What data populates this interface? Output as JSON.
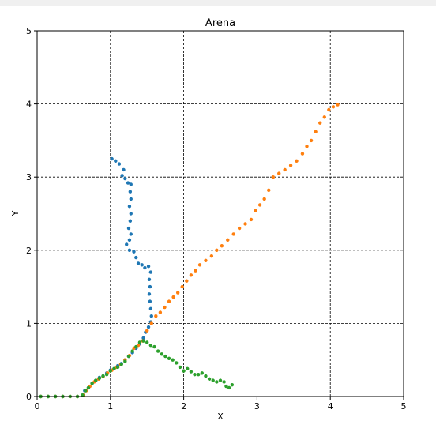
{
  "chart_data": {
    "type": "scatter",
    "title": "Arena",
    "xlabel": "X",
    "ylabel": "Y",
    "xlim": [
      0,
      5
    ],
    "ylim": [
      0,
      5
    ],
    "xticks": [
      0,
      1,
      2,
      3,
      4,
      5
    ],
    "yticks": [
      0,
      1,
      2,
      3,
      4,
      5
    ],
    "grid": true,
    "grid_style": "dashed",
    "legend": "none",
    "series": [
      {
        "color": "#1f77b4",
        "points": [
          [
            0.05,
            0.0
          ],
          [
            0.15,
            0.0
          ],
          [
            0.25,
            0.0
          ],
          [
            0.35,
            0.0
          ],
          [
            0.45,
            0.0
          ],
          [
            0.55,
            0.0
          ],
          [
            0.62,
            0.02
          ],
          [
            0.65,
            0.08
          ],
          [
            0.7,
            0.12
          ],
          [
            0.75,
            0.18
          ],
          [
            0.8,
            0.22
          ],
          [
            0.85,
            0.26
          ],
          [
            0.9,
            0.28
          ],
          [
            0.95,
            0.32
          ],
          [
            1.0,
            0.36
          ],
          [
            1.05,
            0.38
          ],
          [
            1.1,
            0.42
          ],
          [
            1.15,
            0.45
          ],
          [
            1.2,
            0.5
          ],
          [
            1.25,
            0.55
          ],
          [
            1.3,
            0.6
          ],
          [
            1.35,
            0.66
          ],
          [
            1.4,
            0.72
          ],
          [
            1.45,
            0.8
          ],
          [
            1.48,
            0.88
          ],
          [
            1.52,
            0.95
          ],
          [
            1.55,
            1.02
          ],
          [
            1.56,
            1.1
          ],
          [
            1.55,
            1.2
          ],
          [
            1.54,
            1.3
          ],
          [
            1.53,
            1.4
          ],
          [
            1.54,
            1.5
          ],
          [
            1.53,
            1.6
          ],
          [
            1.55,
            1.7
          ],
          [
            1.52,
            1.78
          ],
          [
            1.47,
            1.76
          ],
          [
            1.43,
            1.8
          ],
          [
            1.38,
            1.82
          ],
          [
            1.35,
            1.9
          ],
          [
            1.32,
            1.98
          ],
          [
            1.26,
            2.0
          ],
          [
            1.22,
            2.08
          ],
          [
            1.26,
            2.14
          ],
          [
            1.28,
            2.22
          ],
          [
            1.25,
            2.3
          ],
          [
            1.27,
            2.4
          ],
          [
            1.28,
            2.5
          ],
          [
            1.26,
            2.6
          ],
          [
            1.28,
            2.7
          ],
          [
            1.27,
            2.8
          ],
          [
            1.28,
            2.9
          ],
          [
            1.24,
            2.92
          ],
          [
            1.2,
            2.98
          ],
          [
            1.16,
            3.02
          ],
          [
            1.18,
            3.1
          ],
          [
            1.12,
            3.18
          ],
          [
            1.07,
            3.22
          ],
          [
            1.02,
            3.25
          ]
        ]
      },
      {
        "color": "#ff7f0e",
        "points": [
          [
            0.05,
            0.0
          ],
          [
            0.15,
            0.0
          ],
          [
            0.25,
            0.0
          ],
          [
            0.35,
            0.0
          ],
          [
            0.45,
            0.0
          ],
          [
            0.55,
            0.0
          ],
          [
            0.63,
            0.02
          ],
          [
            0.67,
            0.08
          ],
          [
            0.72,
            0.14
          ],
          [
            0.78,
            0.2
          ],
          [
            0.84,
            0.24
          ],
          [
            0.9,
            0.27
          ],
          [
            0.96,
            0.32
          ],
          [
            1.02,
            0.36
          ],
          [
            1.08,
            0.4
          ],
          [
            1.14,
            0.44
          ],
          [
            1.2,
            0.5
          ],
          [
            1.26,
            0.56
          ],
          [
            1.32,
            0.66
          ],
          [
            1.38,
            0.7
          ],
          [
            1.44,
            0.76
          ],
          [
            1.5,
            0.9
          ],
          [
            1.56,
            1.0
          ],
          [
            1.62,
            1.1
          ],
          [
            1.68,
            1.15
          ],
          [
            1.74,
            1.22
          ],
          [
            1.8,
            1.3
          ],
          [
            1.86,
            1.36
          ],
          [
            1.92,
            1.42
          ],
          [
            1.98,
            1.5
          ],
          [
            2.04,
            1.58
          ],
          [
            2.1,
            1.66
          ],
          [
            2.16,
            1.72
          ],
          [
            2.22,
            1.8
          ],
          [
            2.3,
            1.86
          ],
          [
            2.38,
            1.92
          ],
          [
            2.45,
            2.0
          ],
          [
            2.52,
            2.06
          ],
          [
            2.6,
            2.14
          ],
          [
            2.68,
            2.22
          ],
          [
            2.76,
            2.3
          ],
          [
            2.84,
            2.36
          ],
          [
            2.92,
            2.42
          ],
          [
            2.98,
            2.54
          ],
          [
            3.04,
            2.62
          ],
          [
            3.1,
            2.7
          ],
          [
            3.16,
            2.82
          ],
          [
            3.22,
            3.0
          ],
          [
            3.3,
            3.05
          ],
          [
            3.38,
            3.1
          ],
          [
            3.46,
            3.16
          ],
          [
            3.54,
            3.22
          ],
          [
            3.62,
            3.32
          ],
          [
            3.68,
            3.42
          ],
          [
            3.74,
            3.5
          ],
          [
            3.8,
            3.62
          ],
          [
            3.86,
            3.74
          ],
          [
            3.92,
            3.82
          ],
          [
            3.98,
            3.92
          ],
          [
            4.04,
            3.96
          ],
          [
            4.1,
            3.99
          ]
        ]
      },
      {
        "color": "#2ca02c",
        "points": [
          [
            0.05,
            0.0
          ],
          [
            0.15,
            0.0
          ],
          [
            0.25,
            0.0
          ],
          [
            0.35,
            0.0
          ],
          [
            0.45,
            0.0
          ],
          [
            0.55,
            0.0
          ],
          [
            0.62,
            0.02
          ],
          [
            0.66,
            0.08
          ],
          [
            0.7,
            0.12
          ],
          [
            0.75,
            0.18
          ],
          [
            0.8,
            0.22
          ],
          [
            0.85,
            0.25
          ],
          [
            0.9,
            0.28
          ],
          [
            0.95,
            0.3
          ],
          [
            1.0,
            0.35
          ],
          [
            1.05,
            0.38
          ],
          [
            1.1,
            0.4
          ],
          [
            1.15,
            0.44
          ],
          [
            1.2,
            0.48
          ],
          [
            1.25,
            0.55
          ],
          [
            1.3,
            0.62
          ],
          [
            1.35,
            0.68
          ],
          [
            1.4,
            0.74
          ],
          [
            1.45,
            0.76
          ],
          [
            1.5,
            0.74
          ],
          [
            1.55,
            0.7
          ],
          [
            1.6,
            0.68
          ],
          [
            1.65,
            0.62
          ],
          [
            1.7,
            0.58
          ],
          [
            1.75,
            0.55
          ],
          [
            1.8,
            0.52
          ],
          [
            1.85,
            0.5
          ],
          [
            1.9,
            0.46
          ],
          [
            1.95,
            0.4
          ],
          [
            2.0,
            0.35
          ],
          [
            2.05,
            0.38
          ],
          [
            2.1,
            0.34
          ],
          [
            2.15,
            0.3
          ],
          [
            2.2,
            0.3
          ],
          [
            2.25,
            0.32
          ],
          [
            2.3,
            0.28
          ],
          [
            2.35,
            0.24
          ],
          [
            2.4,
            0.22
          ],
          [
            2.45,
            0.2
          ],
          [
            2.5,
            0.22
          ],
          [
            2.55,
            0.2
          ],
          [
            2.58,
            0.14
          ],
          [
            2.62,
            0.12
          ],
          [
            2.66,
            0.16
          ]
        ]
      }
    ]
  }
}
